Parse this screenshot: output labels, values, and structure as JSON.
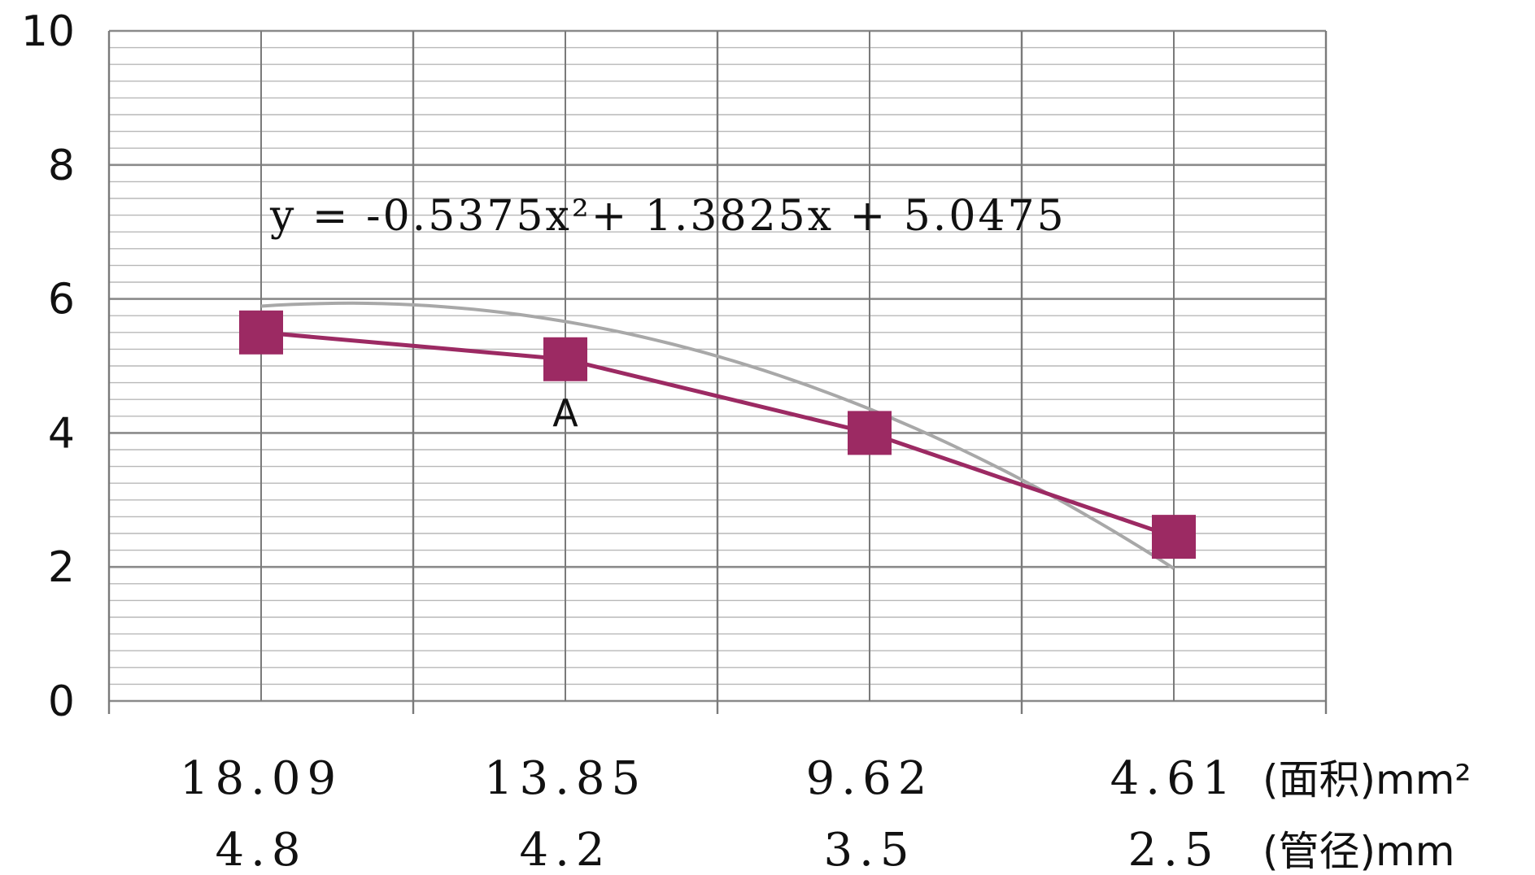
{
  "chart_data": {
    "type": "line",
    "categories": [
      "18.09",
      "13.85",
      "9.62",
      "4.61"
    ],
    "categories_secondary": [
      "4.8",
      "4.2",
      "3.5",
      "2.5"
    ],
    "x_unit_label": "(面积)mm²",
    "x_secondary_unit_label": "(管径)mm",
    "series": [
      {
        "values": [
          5.5,
          5.1,
          4.0,
          2.45
        ],
        "color": "#9c2a63",
        "marker": "square"
      }
    ],
    "trendline": {
      "type": "polynomial",
      "equation": "y = -0.5375x²+ 1.3825x + 5.0475",
      "coefficients": [
        -0.5375,
        1.3825,
        5.0475
      ],
      "color": "#a8a8a8"
    },
    "annotations": [
      {
        "text": "A",
        "category_index": 1
      }
    ],
    "ylim": [
      0,
      10
    ],
    "yticks": [
      "0",
      "2",
      "4",
      "6",
      "8",
      "10"
    ],
    "grid": true,
    "legend": "none",
    "title": "",
    "xlabel": "",
    "ylabel": ""
  }
}
